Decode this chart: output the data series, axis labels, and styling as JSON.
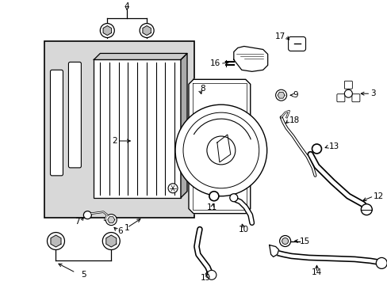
{
  "bg_color": "#ffffff",
  "line_color": "#000000",
  "fig_width": 4.89,
  "fig_height": 3.6,
  "dpi": 100,
  "label_fs": 7.5
}
